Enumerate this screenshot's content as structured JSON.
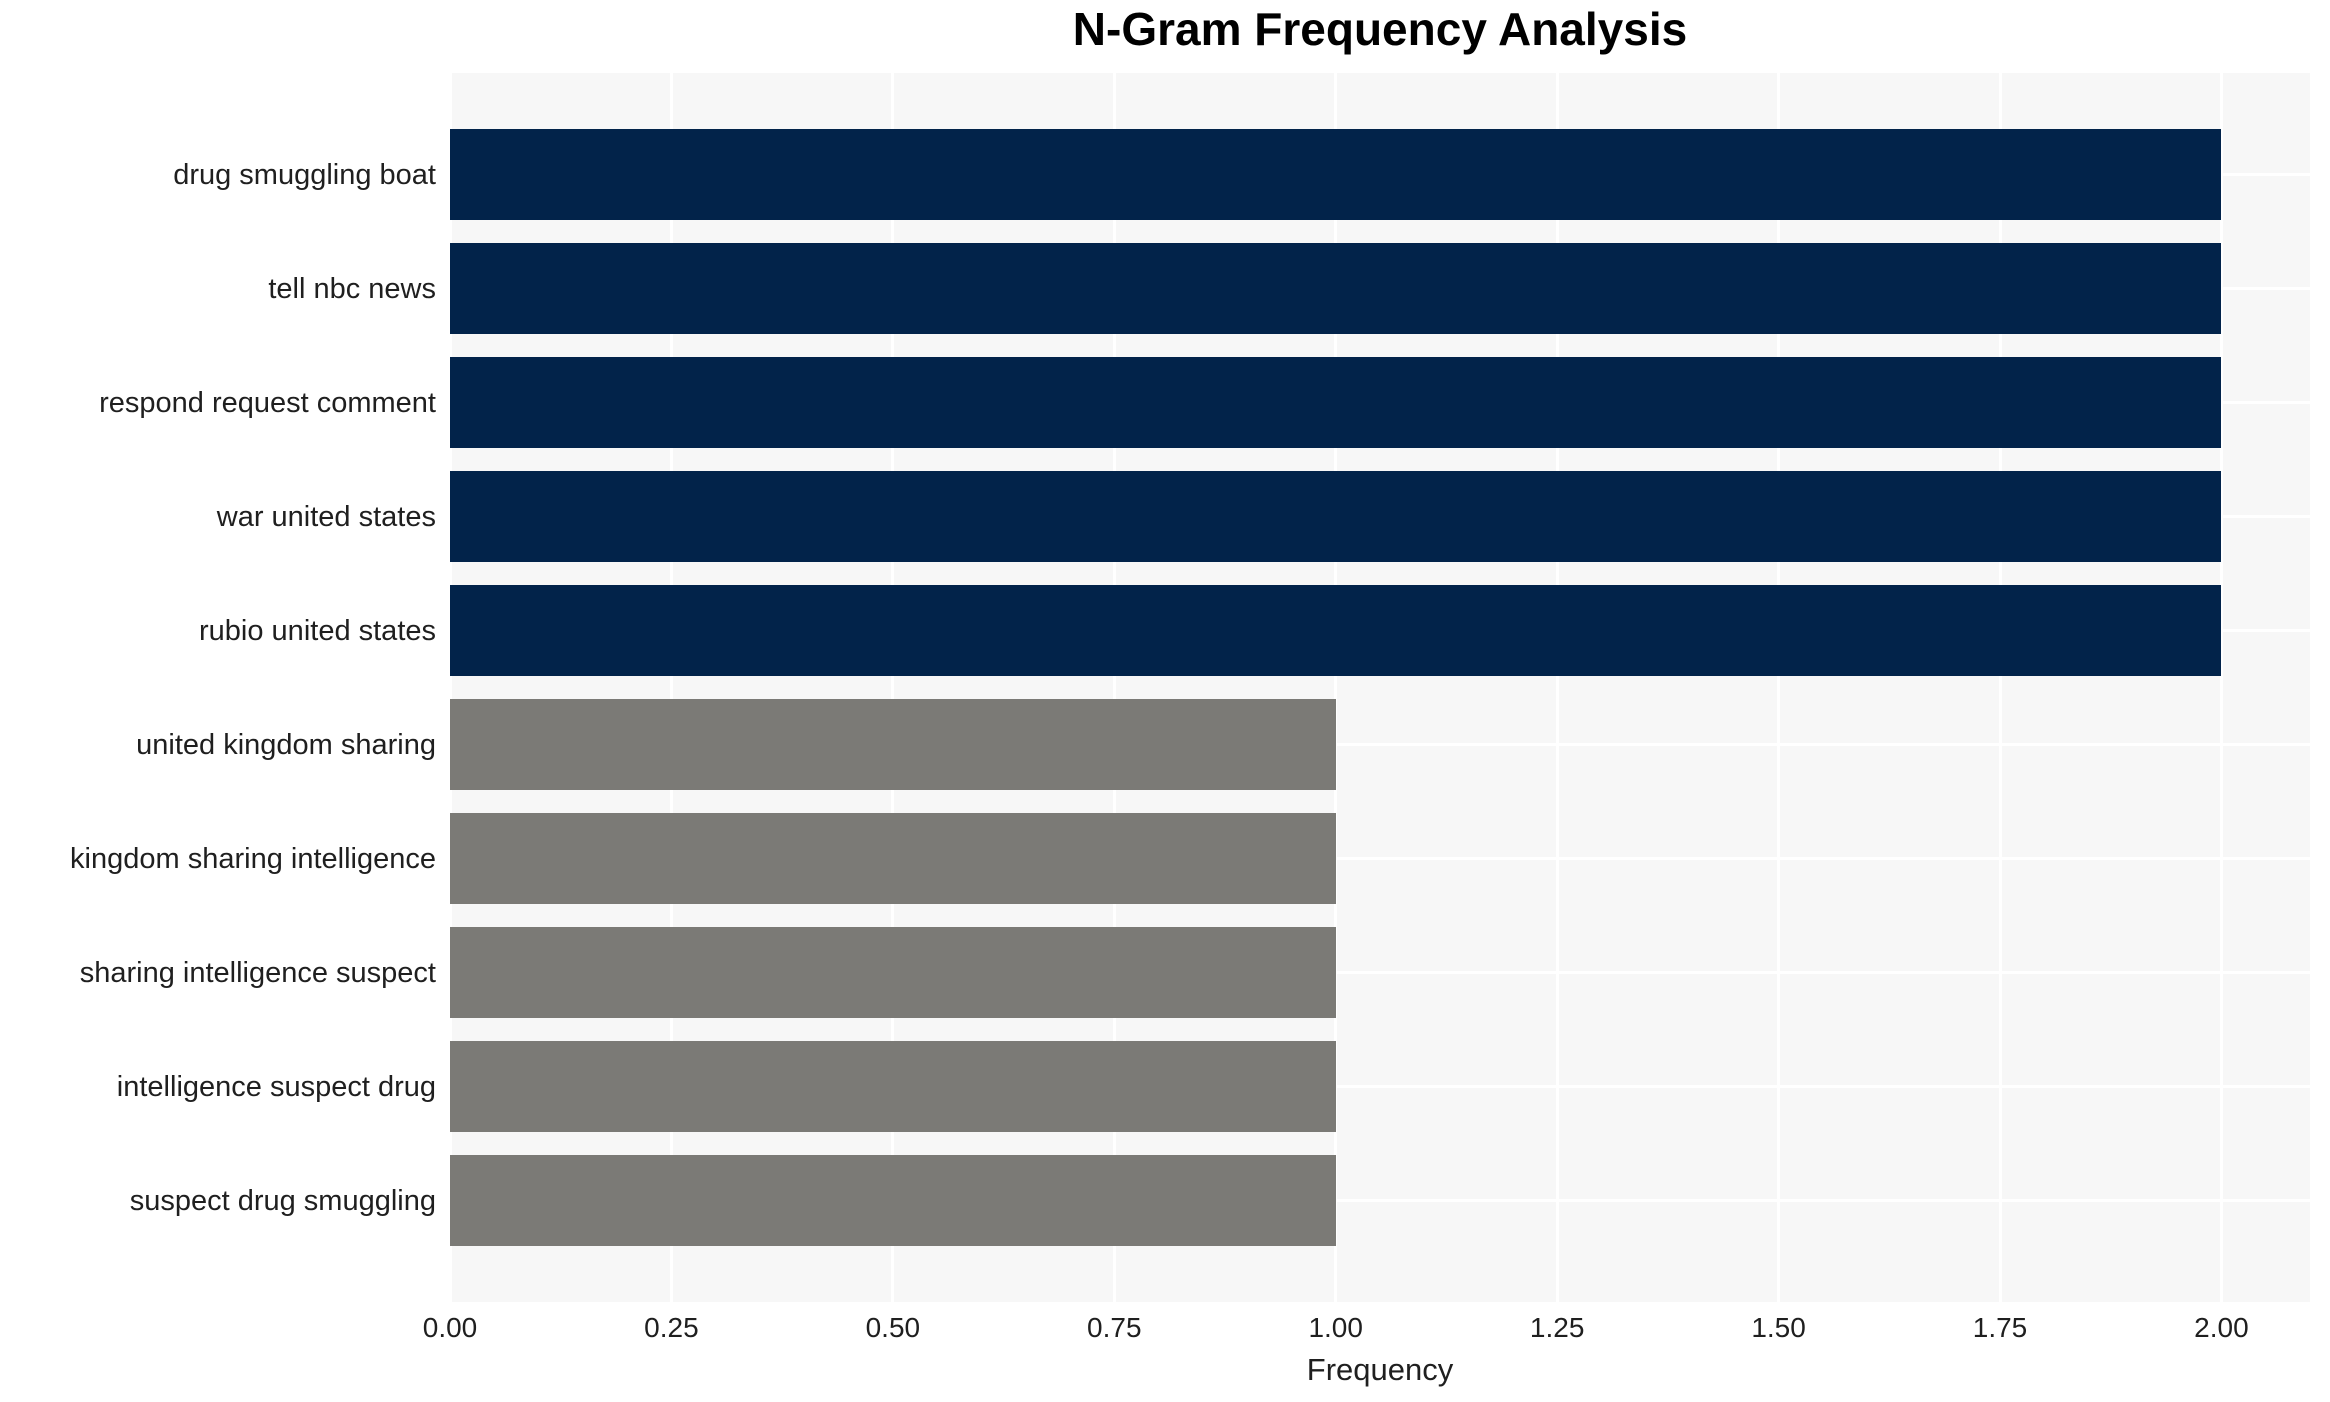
{
  "title": "N-Gram Frequency Analysis",
  "chart_data": {
    "type": "bar",
    "orientation": "horizontal",
    "title": "N-Gram Frequency Analysis",
    "xlabel": "Frequency",
    "ylabel": "",
    "categories": [
      "drug smuggling boat",
      "tell nbc news",
      "respond request comment",
      "war united states",
      "rubio united states",
      "united kingdom sharing",
      "kingdom sharing intelligence",
      "sharing intelligence suspect",
      "intelligence suspect drug",
      "suspect drug smuggling"
    ],
    "values": [
      2,
      2,
      2,
      2,
      2,
      1,
      1,
      1,
      1,
      1
    ],
    "bar_colors": [
      "#02234a",
      "#02234a",
      "#02234a",
      "#02234a",
      "#02234a",
      "#7b7a76",
      "#7b7a76",
      "#7b7a76",
      "#7b7a76",
      "#7b7a76"
    ],
    "xlim": [
      0,
      2.1
    ],
    "xticks": [
      0.0,
      0.25,
      0.5,
      0.75,
      1.0,
      1.25,
      1.5,
      1.75,
      2.0
    ],
    "xtick_labels": [
      "0.00",
      "0.25",
      "0.50",
      "0.75",
      "1.00",
      "1.25",
      "1.50",
      "1.75",
      "2.00"
    ],
    "grid": true,
    "legend": false,
    "colors": {
      "bar_high": "#02234a",
      "bar_low": "#7b7a76",
      "plot_bg": "#f7f7f7",
      "grid_color": "#ffffff",
      "tick_text": "#1f1f1f",
      "title_text": "#000000"
    }
  }
}
